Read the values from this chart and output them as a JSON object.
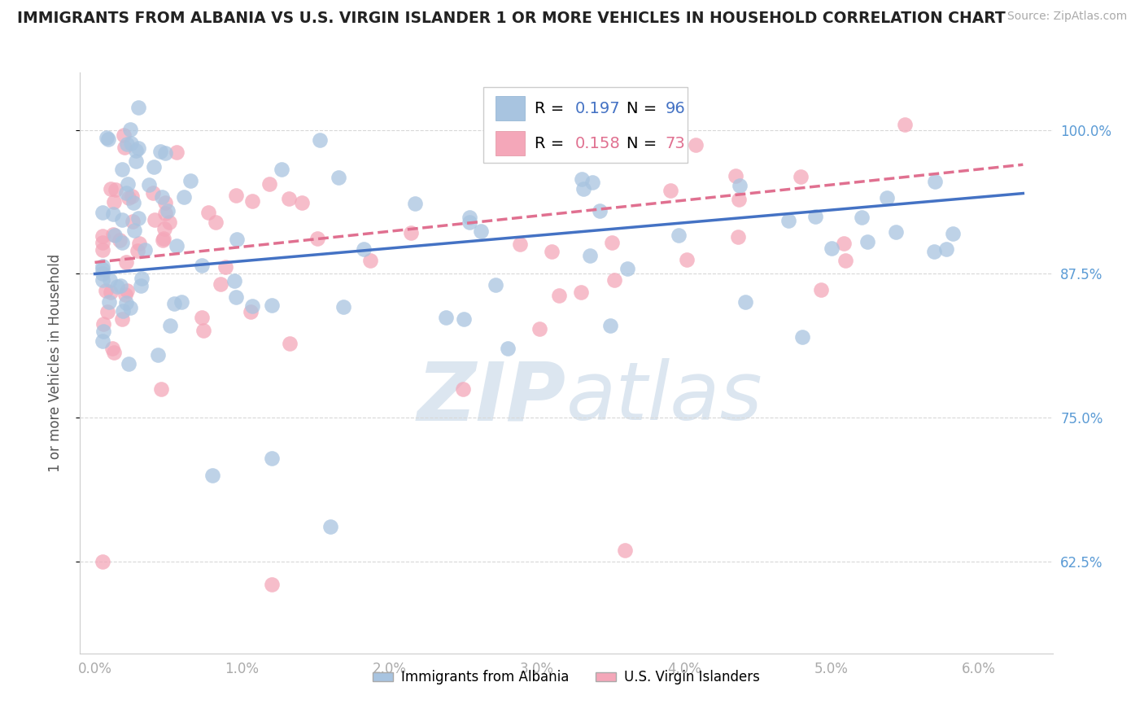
{
  "title": "IMMIGRANTS FROM ALBANIA VS U.S. VIRGIN ISLANDER 1 OR MORE VEHICLES IN HOUSEHOLD CORRELATION CHART",
  "source": "Source: ZipAtlas.com",
  "ylabel": "1 or more Vehicles in Household",
  "y_tick_labels": [
    "62.5%",
    "75.0%",
    "87.5%",
    "100.0%"
  ],
  "y_tick_values": [
    0.625,
    0.75,
    0.875,
    1.0
  ],
  "x_tick_labels": [
    "0.0%",
    "1.0%",
    "2.0%",
    "3.0%",
    "4.0%",
    "5.0%",
    "6.0%"
  ],
  "x_tick_values": [
    0.0,
    0.01,
    0.02,
    0.03,
    0.04,
    0.05,
    0.06
  ],
  "legend_label1": "Immigrants from Albania",
  "legend_label2": "U.S. Virgin Islanders",
  "color_blue": "#a8c4e0",
  "color_pink": "#f4a7b9",
  "trendline_blue": "#4472c4",
  "trendline_pink": "#e07090",
  "watermark_color": "#dce6f0",
  "xlim": [
    -0.001,
    0.065
  ],
  "ylim": [
    0.545,
    1.05
  ],
  "R1": 0.197,
  "N1": 96,
  "R2": 0.158,
  "N2": 73,
  "grid_color": "#d8d8d8",
  "title_color": "#222222",
  "source_color": "#aaaaaa",
  "axis_label_color": "#555555",
  "tick_color": "#aaaaaa",
  "right_tick_color": "#5b9bd5",
  "dot_size": 180,
  "dot_linewidth": 1.5
}
